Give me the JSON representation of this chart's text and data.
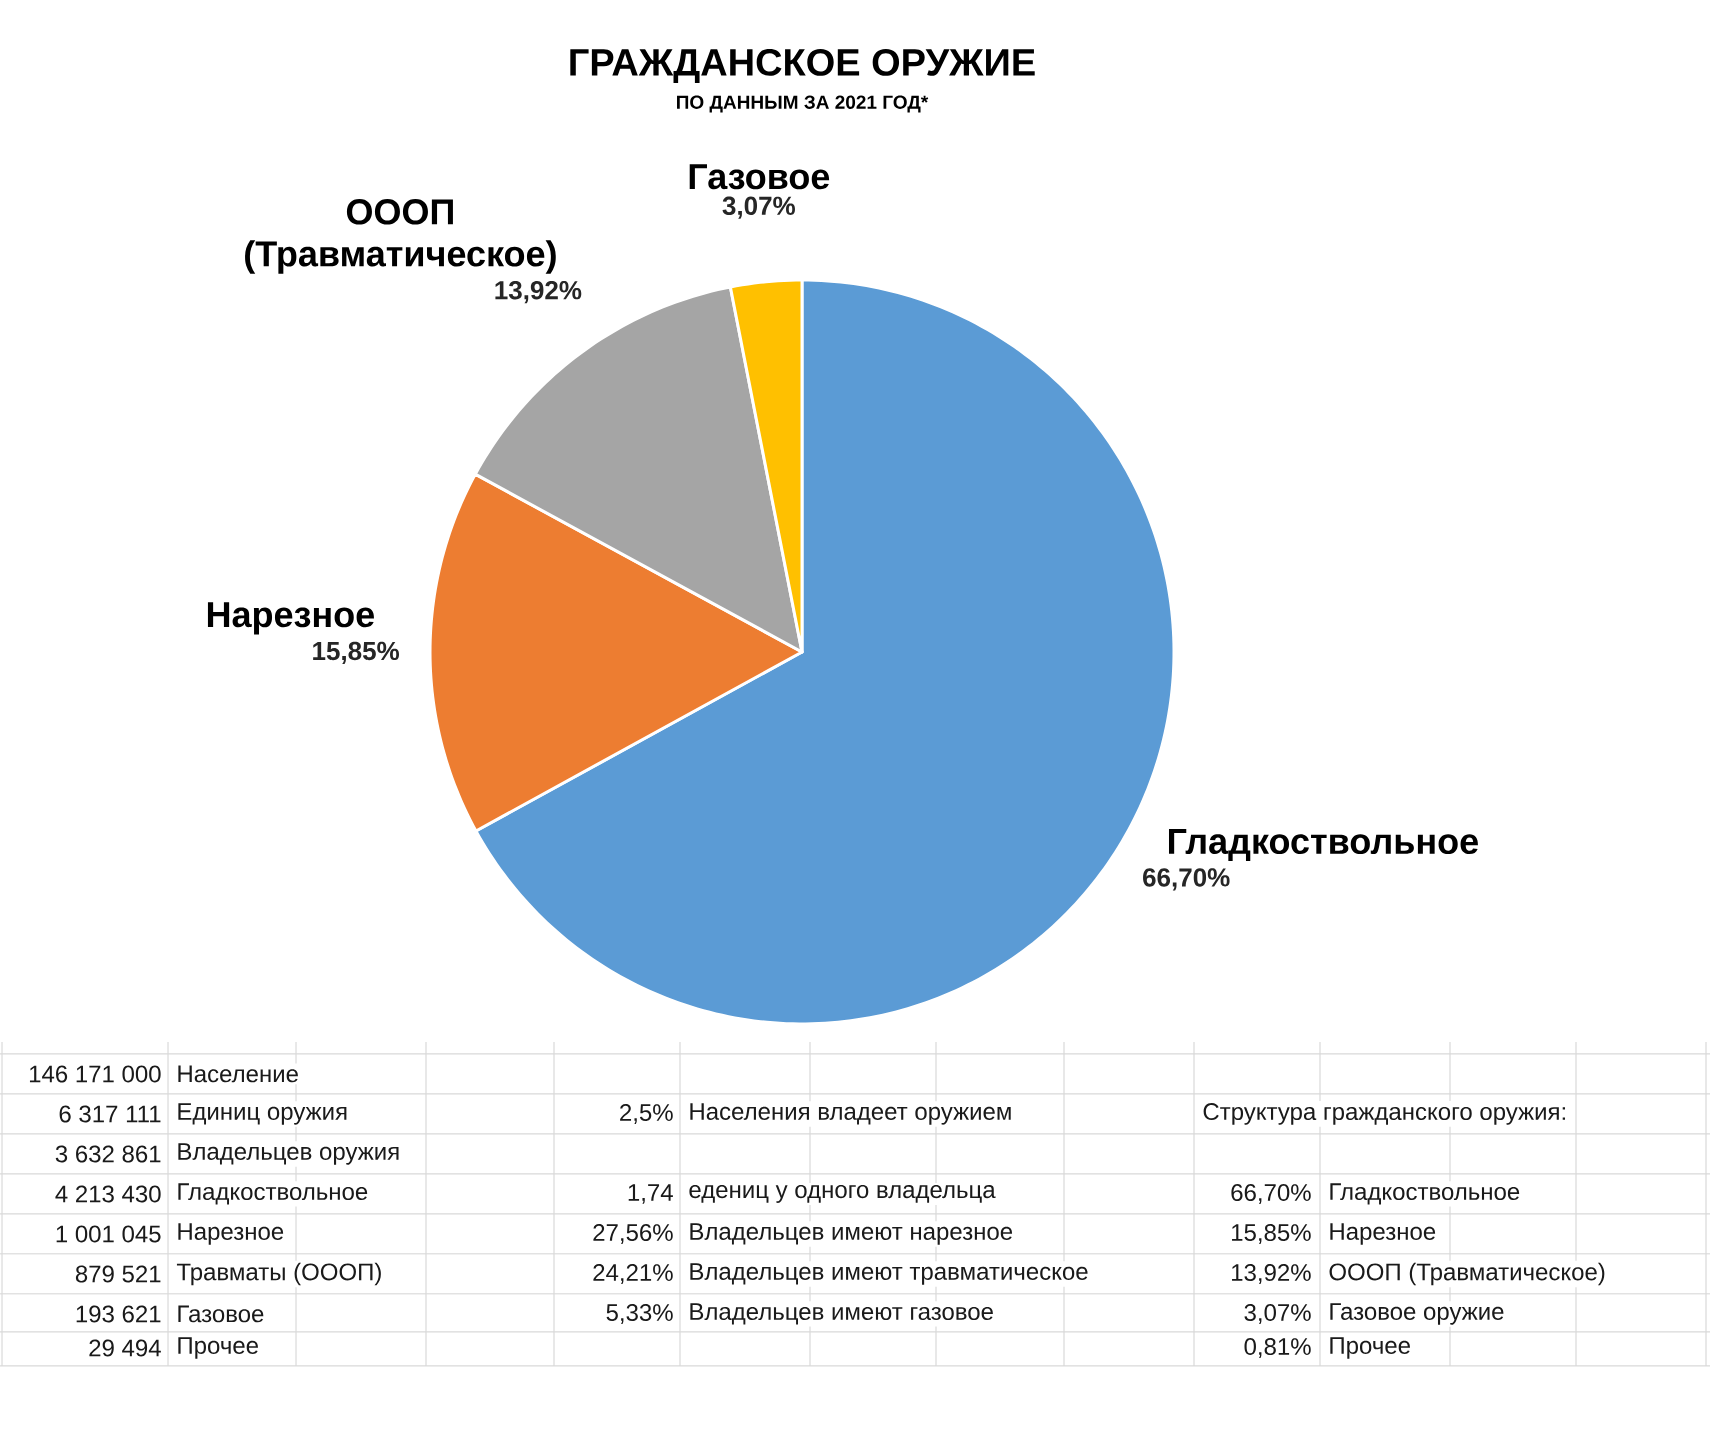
{
  "chart_data": {
    "type": "pie",
    "title": "ГРАЖДАНСКОЕ ОРУЖИЕ",
    "subtitle": "ПО ДАННЫМ ЗА 2021 ГОД*",
    "categories": [
      "Гладкоствольное",
      "Нарезное",
      "ОООП (Травматическое)",
      "Газовое"
    ],
    "values": [
      66.7,
      15.85,
      13.92,
      3.07
    ],
    "colors": [
      "#5b9bd5",
      "#ed7d31",
      "#a5a5a5",
      "#ffc000"
    ],
    "value_labels": [
      "66,70%",
      "15,85%",
      "13,92%",
      "3,07%"
    ],
    "annotations": [
      "146 171 000",
      "Население",
      "6 317 111",
      "Единиц оружия",
      "2,5%",
      "Населения владеет оружием",
      "Структура гражданского оружия:",
      "3 632 861",
      "Владельцев оружия",
      "4 213 430",
      "Гладкоствольное",
      "1,74",
      "едениц у одного владельца",
      "66,70%",
      "Гладкоствольное",
      "1 001 045",
      "Нарезное",
      "27,56%",
      "Владельцев имеют нарезное",
      "15,85%",
      "Нарезное",
      "879 521",
      "Травматы (ОООП)",
      "24,21%",
      "Владельцев имеют травматическое",
      "13,92%",
      "ОООП (Травматическое)",
      "193 621",
      "Газовое",
      "5,33%",
      "Владельцев имеют газовое",
      "3,07%",
      "Газовое оружие",
      "29 494",
      "Прочее",
      "0,81%",
      "Прочее"
    ]
  }
}
